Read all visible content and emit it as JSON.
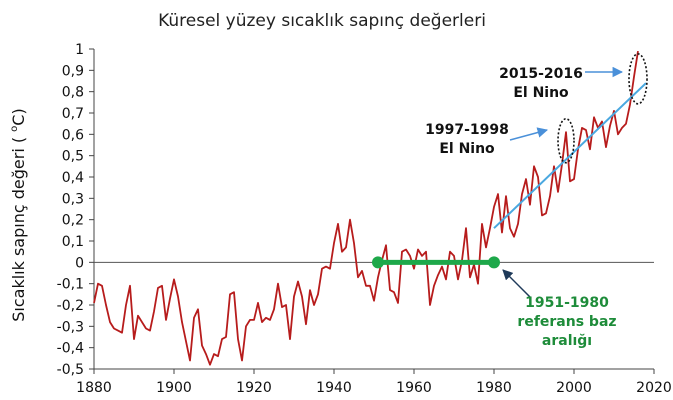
{
  "chart_data": {
    "type": "line",
    "title": "Küresel yüzey sıcaklık sapınç değerleri",
    "xlabel": "",
    "ylabel": "Sıcaklık sapınç değeri (°C)",
    "ylabel_parts": {
      "main": "Sıcaklık sapınç değeri ( ",
      "unit": "C)",
      "degree": "o"
    },
    "xlim": [
      1880,
      2020
    ],
    "ylim": [
      -0.5,
      1
    ],
    "x_ticks": [
      "1880",
      "1900",
      "1920",
      "1940",
      "1960",
      "1980",
      "2000",
      "2020"
    ],
    "y_ticks": [
      "1",
      "0,9",
      "0,8",
      "0,7",
      "0,6",
      "0,5",
      "0,4",
      "0,3",
      "0,2",
      "0,1",
      "0",
      "-0,1",
      "-0,2",
      "-0,3",
      "-0,4",
      "-0,5"
    ],
    "grid": false,
    "colors": {
      "series": "#b71c1c",
      "trend": "#4aa8e0",
      "baseline": "#1ea84a",
      "ellipse": "#111111",
      "ann_green": "#1e8c3a",
      "arrow_blue": "#4a90d9",
      "arrow_dark": "#1f3a5a"
    },
    "series": [
      {
        "x": [
          1880,
          1881,
          1882,
          1883,
          1884,
          1885,
          1886,
          1887,
          1888,
          1889,
          1890,
          1891,
          1892,
          1893,
          1894,
          1895,
          1896,
          1897,
          1898,
          1899,
          1900,
          1901,
          1902,
          1903,
          1904,
          1905,
          1906,
          1907,
          1908,
          1909,
          1910,
          1911,
          1912,
          1913,
          1914,
          1915,
          1916,
          1917,
          1918,
          1919,
          1920,
          1921,
          1922,
          1923,
          1924,
          1925,
          1926,
          1927,
          1928,
          1929,
          1930,
          1931,
          1932,
          1933,
          1934,
          1935,
          1936,
          1937,
          1938,
          1939,
          1940,
          1941,
          1942,
          1943,
          1944,
          1945,
          1946,
          1947,
          1948,
          1949,
          1950,
          1951,
          1952,
          1953,
          1954,
          1955,
          1956,
          1957,
          1958,
          1959,
          1960,
          1961,
          1962,
          1963,
          1964,
          1965,
          1966,
          1967,
          1968,
          1969,
          1970,
          1971,
          1972,
          1973,
          1974,
          1975,
          1976,
          1977,
          1978,
          1979,
          1980,
          1981,
          1982,
          1983,
          1984,
          1985,
          1986,
          1987,
          1988,
          1989,
          1990,
          1991,
          1992,
          1993,
          1994,
          1995,
          1996,
          1997,
          1998,
          1999,
          2000,
          2001,
          2002,
          2003,
          2004,
          2005,
          2006,
          2007,
          2008,
          2009,
          2010,
          2011,
          2012,
          2013,
          2014,
          2015,
          2016
        ],
        "values": [
          -0.19,
          -0.1,
          -0.11,
          -0.2,
          -0.28,
          -0.31,
          -0.32,
          -0.33,
          -0.2,
          -0.11,
          -0.36,
          -0.25,
          -0.28,
          -0.31,
          -0.32,
          -0.23,
          -0.12,
          -0.11,
          -0.27,
          -0.17,
          -0.08,
          -0.16,
          -0.28,
          -0.37,
          -0.46,
          -0.26,
          -0.22,
          -0.39,
          -0.43,
          -0.48,
          -0.43,
          -0.44,
          -0.36,
          -0.35,
          -0.15,
          -0.14,
          -0.36,
          -0.46,
          -0.3,
          -0.27,
          -0.27,
          -0.19,
          -0.28,
          -0.26,
          -0.27,
          -0.22,
          -0.1,
          -0.21,
          -0.2,
          -0.36,
          -0.16,
          -0.09,
          -0.16,
          -0.29,
          -0.13,
          -0.2,
          -0.15,
          -0.03,
          -0.02,
          -0.03,
          0.09,
          0.18,
          0.05,
          0.07,
          0.2,
          0.09,
          -0.07,
          -0.04,
          -0.11,
          -0.11,
          -0.18,
          -0.07,
          0.01,
          0.08,
          -0.13,
          -0.14,
          -0.19,
          0.05,
          0.06,
          0.03,
          -0.03,
          0.06,
          0.03,
          0.05,
          -0.2,
          -0.11,
          -0.06,
          -0.02,
          -0.08,
          0.05,
          0.03,
          -0.08,
          0.01,
          0.16,
          -0.07,
          -0.01,
          -0.1,
          0.18,
          0.07,
          0.16,
          0.26,
          0.32,
          0.14,
          0.31,
          0.16,
          0.12,
          0.18,
          0.32,
          0.39,
          0.27,
          0.45,
          0.4,
          0.22,
          0.23,
          0.31,
          0.45,
          0.33,
          0.46,
          0.61,
          0.38,
          0.39,
          0.53,
          0.63,
          0.62,
          0.53,
          0.68,
          0.63,
          0.66,
          0.54,
          0.64,
          0.71,
          0.6,
          0.63,
          0.65,
          0.74,
          0.87,
          0.99
        ]
      }
    ],
    "trend": {
      "x": [
        1980,
        2018
      ],
      "values": [
        0.16,
        0.84
      ]
    },
    "baseline": {
      "x": [
        1951,
        1980
      ],
      "value": 0
    },
    "annotations": [
      {
        "text": "2015-2016",
        "text2": "El Nino"
      },
      {
        "text": "1997-1998",
        "text2": "El Nino"
      },
      {
        "text": "1951-1980",
        "text2": "referans baz",
        "text3": "aralığı"
      }
    ]
  }
}
